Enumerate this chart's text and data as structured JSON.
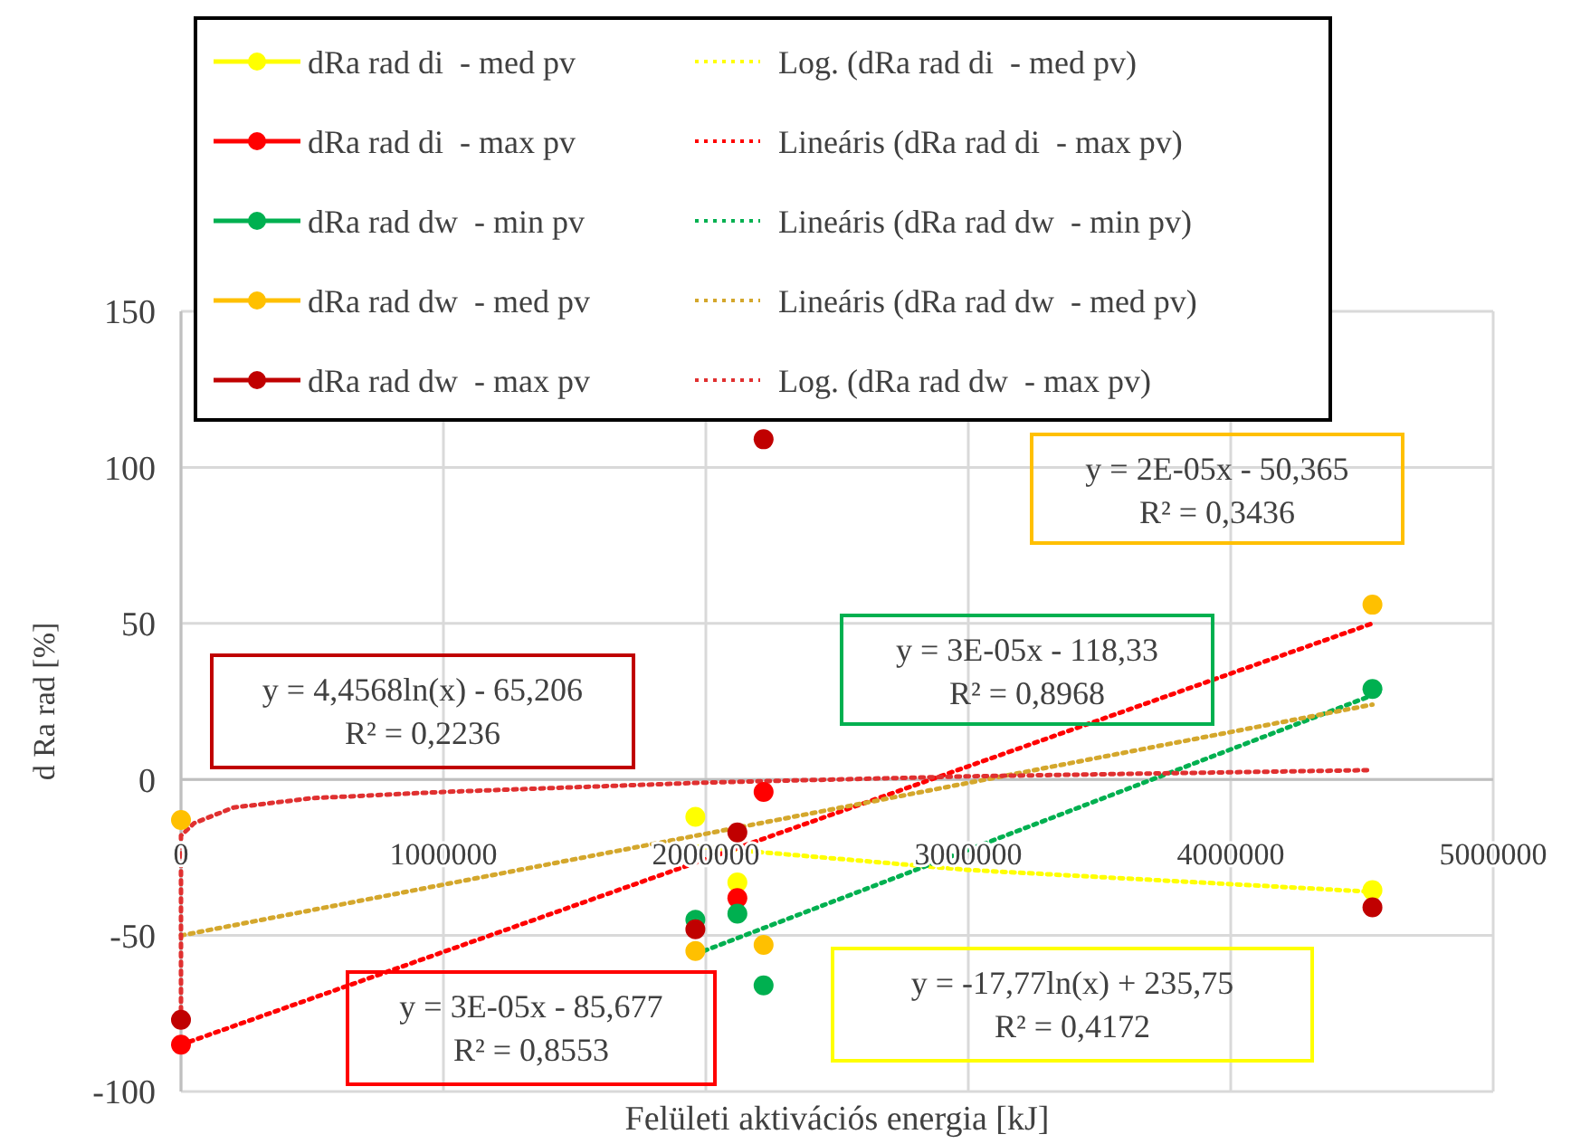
{
  "chart_data": {
    "type": "scatter",
    "xlabel": "Felületi aktivációs energia [kJ]",
    "ylabel": "d Ra rad [%]",
    "xlim": [
      0,
      5000000
    ],
    "xticks": [
      0,
      1000000,
      2000000,
      3000000,
      4000000,
      5000000
    ],
    "ylim": [
      -100,
      150
    ],
    "yticks": [
      -100,
      -50,
      0,
      50,
      100,
      150
    ],
    "grid": true,
    "legend": "top",
    "marker": "circle",
    "series": [
      {
        "name": "dRa rad di  - med pv",
        "color": "#ffff00",
        "x": [
          1960000,
          2120000,
          4540000
        ],
        "values": [
          -12,
          -33,
          -35.5
        ]
      },
      {
        "name": "dRa rad di  - max pv",
        "color": "#ff0000",
        "x": [
          0,
          2120000,
          2220000
        ],
        "values": [
          -85,
          -38,
          -4
        ]
      },
      {
        "name": "dRa rad dw  - min pv",
        "color": "#00b050",
        "x": [
          1960000,
          2120000,
          2220000,
          4540000
        ],
        "values": [
          -45,
          -43,
          -66,
          29
        ]
      },
      {
        "name": "dRa rad dw  - med pv",
        "color": "#ffc000",
        "x": [
          0,
          1960000,
          2220000,
          4540000
        ],
        "values": [
          -13,
          -55,
          -53,
          56
        ]
      },
      {
        "name": "dRa rad dw  - max pv",
        "color": "#c00000",
        "x": [
          0,
          1960000,
          2120000,
          2220000,
          4540000
        ],
        "values": [
          -77,
          -48,
          -17,
          109,
          -41
        ]
      },
      {
        "name": "Log. (dRa rad di  - med pv)",
        "type": "line",
        "line_style": "dotted",
        "marker": "none",
        "color": "#ffff00",
        "x": [
          1960000,
          3000000,
          4540000
        ],
        "values": [
          -21.5,
          -29,
          -36
        ]
      },
      {
        "name": "Lineáris (dRa rad di  - max pv)",
        "type": "line",
        "line_style": "dotted",
        "marker": "none",
        "color": "#ff0000",
        "x": [
          0,
          4540000
        ],
        "values": [
          -85,
          50
        ]
      },
      {
        "name": "Lineáris (dRa rad dw  - min pv)",
        "type": "line",
        "line_style": "dotted",
        "marker": "none",
        "color": "#00b050",
        "x": [
          1960000,
          4540000
        ],
        "values": [
          -56,
          27
        ]
      },
      {
        "name": "Lineáris (dRa rad dw  - med pv)",
        "type": "line",
        "line_style": "dotted",
        "marker": "none",
        "color": "#d4a72c",
        "x": [
          0,
          4540000
        ],
        "values": [
          -50,
          24
        ]
      },
      {
        "name": "Log. (dRa rad dw  - max pv)",
        "type": "line",
        "line_style": "dotted",
        "marker": "none",
        "color": "#e03030",
        "x": [
          0,
          0,
          50000,
          200000,
          500000,
          1000000,
          2000000,
          3000000,
          4540000
        ],
        "values": [
          -77,
          -18,
          -14,
          -9,
          -6,
          -4,
          -1,
          1,
          3
        ]
      }
    ],
    "annotations": [
      "y = 2E-05x - 50,365\nR² = 0,3436",
      "y = 3E-05x - 118,33\nR² = 0,8968",
      "y = 4,4568ln(x) - 65,206\nR² = 0,2236",
      "y = 3E-05x - 85,677\nR² = 0,8553",
      "y = -17,77ln(x)  + 235,75\nR² = 0,4172"
    ]
  }
}
